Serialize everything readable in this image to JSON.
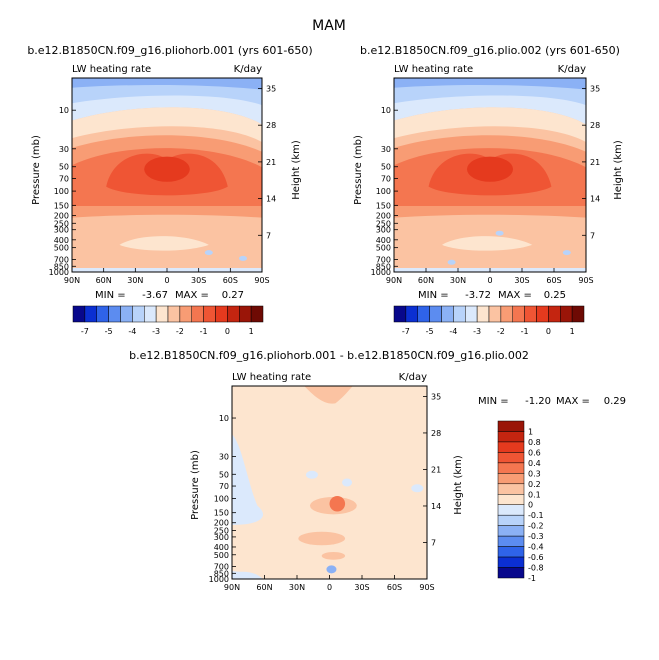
{
  "figure": {
    "title": "MAM",
    "colors": {
      "neg": [
        "#08088c",
        "#0b2fd2",
        "#2f63e8",
        "#5c8cf0",
        "#8bb1f5",
        "#b8d3fa",
        "#dbe9fc"
      ],
      "pos": [
        "#fde5cf",
        "#fbc3a2",
        "#f89c74",
        "#f47650",
        "#ef5534",
        "#e53a1e",
        "#c42510",
        "#9a1508",
        "#6e0a04"
      ],
      "diff_neg": [
        "#dbe9fc",
        "#b8d3fa",
        "#8bb1f5",
        "#5c8cf0",
        "#2f63e8",
        "#0b2fd2",
        "#08088c"
      ],
      "diff_pos": [
        "#fde5cf",
        "#fbc3a2",
        "#f89c74",
        "#f47650",
        "#ef5534",
        "#e53a1e",
        "#c42510",
        "#9a1508"
      ]
    }
  },
  "chart_data": [
    {
      "type": "heatmap",
      "title": "b.e12.B1850CN.f09_g16.pliohorb.001 (yrs 601-650)",
      "left_label": "LW heating rate",
      "right_label": "K/day",
      "ylabel": "Pressure (mb)",
      "ylabel_right": "Height (km)",
      "xticks": [
        "90N",
        "60N",
        "30N",
        "0",
        "30S",
        "60S",
        "90S"
      ],
      "yticks": [
        "10",
        "30",
        "50",
        "70",
        "100",
        "150",
        "200",
        "250",
        "300",
        "400",
        "500",
        "700",
        "850",
        "1000"
      ],
      "yticks_right": [
        "35",
        "28",
        "21",
        "14",
        "7"
      ],
      "stats": {
        "min_label": "MIN =",
        "min": "-3.67",
        "max_label": "MAX =",
        "max": "0.27"
      },
      "colorbar": {
        "orientation": "horizontal",
        "labels": [
          "-7",
          "-5",
          "-4",
          "-3",
          "-2",
          "-1",
          "0",
          "1"
        ]
      }
    },
    {
      "type": "heatmap",
      "title": "b.e12.B1850CN.f09_g16.plio.002 (yrs 601-650)",
      "left_label": "LW heating rate",
      "right_label": "K/day",
      "ylabel": "Pressure (mb)",
      "ylabel_right": "Height (km)",
      "xticks": [
        "90N",
        "60N",
        "30N",
        "0",
        "30S",
        "60S",
        "90S"
      ],
      "yticks": [
        "10",
        "30",
        "50",
        "70",
        "100",
        "150",
        "200",
        "250",
        "300",
        "400",
        "500",
        "700",
        "850",
        "1000"
      ],
      "yticks_right": [
        "35",
        "28",
        "21",
        "14",
        "7"
      ],
      "stats": {
        "min_label": "MIN =",
        "min": "-3.72",
        "max_label": "MAX =",
        "max": "0.25"
      },
      "colorbar": {
        "orientation": "horizontal",
        "labels": [
          "-7",
          "-5",
          "-4",
          "-3",
          "-2",
          "-1",
          "0",
          "1"
        ]
      }
    },
    {
      "type": "heatmap",
      "title": "b.e12.B1850CN.f09_g16.pliohorb.001 - b.e12.B1850CN.f09_g16.plio.002",
      "left_label": "LW heating rate",
      "right_label": "K/day",
      "ylabel": "Pressure (mb)",
      "ylabel_right": "Height (km)",
      "xticks": [
        "90N",
        "60N",
        "30N",
        "0",
        "30S",
        "60S",
        "90S"
      ],
      "yticks": [
        "10",
        "30",
        "50",
        "70",
        "100",
        "150",
        "200",
        "250",
        "300",
        "400",
        "500",
        "700",
        "850",
        "1000"
      ],
      "yticks_right": [
        "35",
        "28",
        "21",
        "14",
        "7"
      ],
      "stats": {
        "min_label": "MIN =",
        "min": "-1.20",
        "max_label": "MAX =",
        "max": "0.29"
      },
      "colorbar": {
        "orientation": "vertical",
        "labels": [
          "1",
          "0.8",
          "0.6",
          "0.4",
          "0.3",
          "0.2",
          "0.1",
          "0",
          "-0.1",
          "-0.2",
          "-0.3",
          "-0.4",
          "-0.6",
          "-0.8",
          "-1"
        ]
      }
    }
  ]
}
